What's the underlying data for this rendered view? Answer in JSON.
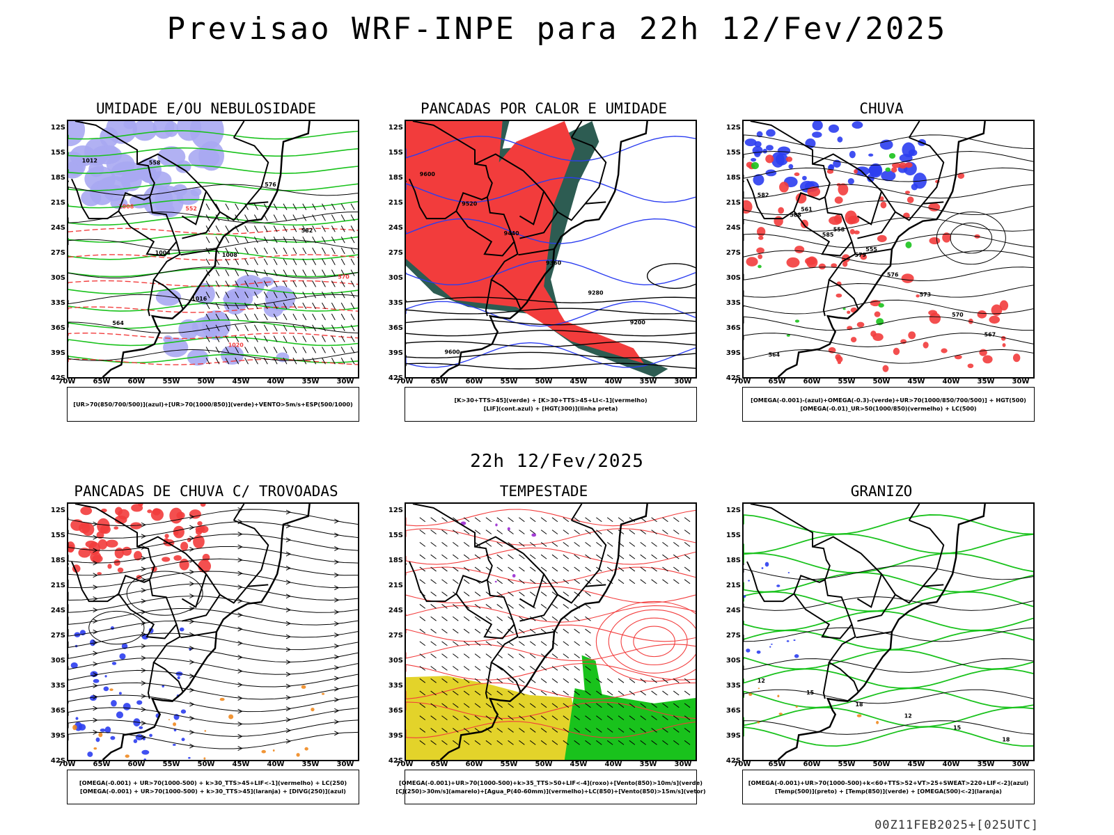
{
  "title": "Previsao WRF-INPE  para 22h 12/Fev/2025",
  "subtitle": "22h 12/Fev/2025",
  "footer": "00Z11FEB2025+[025UTC]",
  "axes": {
    "lat_labels": [
      "12S",
      "15S",
      "18S",
      "21S",
      "24S",
      "27S",
      "30S",
      "33S",
      "36S",
      "39S",
      "42S"
    ],
    "lon_labels": [
      "70W",
      "65W",
      "60W",
      "55W",
      "50W",
      "45W",
      "40W",
      "35W",
      "30W"
    ]
  },
  "colors": {
    "red": "#f23c3c",
    "blue": "#2b3df0",
    "green": "#19c21c",
    "lavender": "#a9a9f2",
    "teal": "#2d5c52",
    "yellow": "#e3d32a",
    "orange": "#f08a20",
    "purple": "#9a2ad0"
  },
  "panels": [
    {
      "title": "UMIDADE E/OU NEBULOSIDADE",
      "legend": [
        "[UR>70(850/700/500)](azul)+[UR>70(1000/850)](verde)+VENTO>5m/s+ESP(500/1000)"
      ]
    },
    {
      "title": "PANCADAS POR CALOR E UMIDADE",
      "legend": [
        "[K>30+TTS>45](verde) + [K>30+TTS>45+LI<-1](vermelho)",
        "[LIF](cont.azul) + [HGT(300)](linha preta)"
      ]
    },
    {
      "title": "CHUVA",
      "legend": [
        "[OMEGA(-0.001)-(azul)+OMEGA(-0.3)-(verde)+UR>70(1000/850/700/500)] + HGT(500)",
        "[OMEGA(-0.01)_UR>50(1000/850)(vermelho) + LC(500)"
      ]
    },
    {
      "title": "PANCADAS DE CHUVA C/ TROVOADAS",
      "legend": [
        "[OMEGA(-0.001) + UR>70(1000-500) + k>30_TTS>45+LIF<-1](vermelho) + LC(250)",
        "[OMEGA(-0.001) + UR>70(1000-500) + k>30_TTS>45](laranja) + [DIVG(250)](azul)"
      ]
    },
    {
      "title": "TEMPESTADE",
      "legend": [
        "[OMEGA(-0.001)+UR>70(1000-500)+k>35_TTS>50+LIF<-4](roxo)+[Vento(850)>10m/s](verde)",
        "[CJ(250)>30m/s](amarelo)+[Agua_P(40-60mm)](vermelho)+LC(850)+[Vento(850)>15m/s](vetor)"
      ]
    },
    {
      "title": "GRANIZO",
      "legend": [
        "[OMEGA(-0.001)+UR>70(1000-500)+k<60+TTS>52+VT>25+SWEAT>220+LIF<-2](azul)",
        "[Temp(500)](preto) + [Temp(850)](verde) + [OMEGA(500)<-2](laranja)"
      ]
    }
  ],
  "contour_labels": {
    "p1": [
      "1012",
      "1008",
      "1004",
      "1016",
      "1020",
      "576",
      "582",
      "570",
      "564",
      "558",
      "552",
      "1008"
    ],
    "p2": [
      "9600",
      "9520",
      "9440",
      "9360",
      "9280",
      "9200",
      "9600"
    ],
    "p3": [
      "582",
      "588",
      "585",
      "579",
      "576",
      "573",
      "570",
      "567",
      "564",
      "561",
      "558",
      "555"
    ],
    "p6": [
      "12",
      "15",
      "18",
      "12",
      "15",
      "18"
    ]
  }
}
